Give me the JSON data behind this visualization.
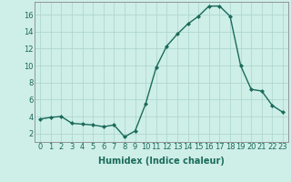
{
  "x": [
    0,
    1,
    2,
    3,
    4,
    5,
    6,
    7,
    8,
    9,
    10,
    11,
    12,
    13,
    14,
    15,
    16,
    17,
    18,
    19,
    20,
    21,
    22,
    23
  ],
  "y": [
    3.7,
    3.9,
    4.0,
    3.2,
    3.1,
    3.0,
    2.8,
    3.0,
    1.6,
    2.3,
    5.5,
    9.8,
    12.3,
    13.7,
    14.9,
    15.8,
    17.0,
    17.0,
    15.8,
    10.0,
    7.2,
    7.0,
    5.3,
    4.5
  ],
  "line_color": "#1a6b5a",
  "marker": "D",
  "markersize": 2.0,
  "linewidth": 1.0,
  "bg_color": "#ceeee8",
  "grid_color": "#aad4cc",
  "xlabel": "Humidex (Indice chaleur)",
  "xlabel_fontsize": 7,
  "xtick_labels": [
    "0",
    "1",
    "2",
    "3",
    "4",
    "5",
    "6",
    "7",
    "8",
    "9",
    "10",
    "11",
    "12",
    "13",
    "14",
    "15",
    "16",
    "17",
    "18",
    "19",
    "20",
    "21",
    "22",
    "23"
  ],
  "ytick_values": [
    2,
    4,
    6,
    8,
    10,
    12,
    14,
    16
  ],
  "ylim": [
    1.0,
    17.5
  ],
  "xlim": [
    -0.5,
    23.5
  ],
  "tick_fontsize": 6,
  "fig_bg_color": "#ceeee8"
}
